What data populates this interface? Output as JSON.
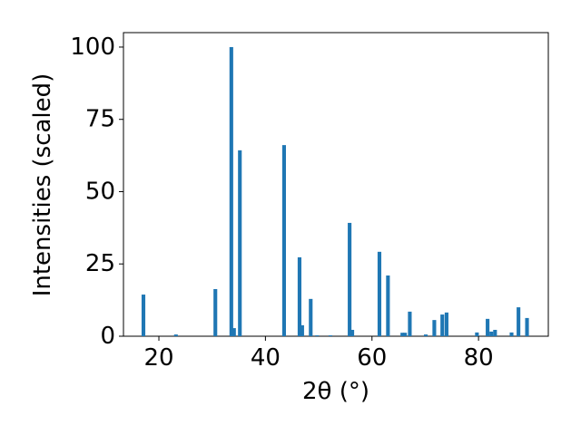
{
  "chart_data": {
    "type": "bar",
    "x": [
      17.1,
      23.2,
      30.6,
      33.6,
      34.1,
      35.2,
      43.5,
      46.4,
      46.9,
      48.5,
      49.7,
      52.2,
      55.8,
      56.3,
      61.4,
      63.0,
      65.7,
      66.2,
      67.1,
      70.1,
      71.7,
      73.2,
      74.0,
      79.7,
      81.7,
      82.4,
      83.1,
      86.2,
      87.5,
      89.1
    ],
    "values": [
      14.4,
      0.6,
      16.3,
      100,
      2.8,
      64.3,
      66.1,
      27.3,
      3.8,
      12.9,
      0.3,
      0.3,
      39.2,
      2.2,
      29.2,
      21.0,
      1.2,
      1.2,
      8.5,
      0.6,
      5.6,
      7.5,
      8.2,
      1.3,
      6.0,
      1.6,
      2.2,
      1.3,
      10.0,
      6.3
    ],
    "color": "#1f77b4",
    "xlabel": "2θ (°)",
    "ylabel": "Intensities (scaled)",
    "xlim": [
      13.35,
      93.1
    ],
    "xticks": [
      20,
      40,
      60,
      80
    ],
    "ylim": [
      0,
      105
    ],
    "yticks": [
      0,
      25,
      50,
      75,
      100
    ]
  }
}
